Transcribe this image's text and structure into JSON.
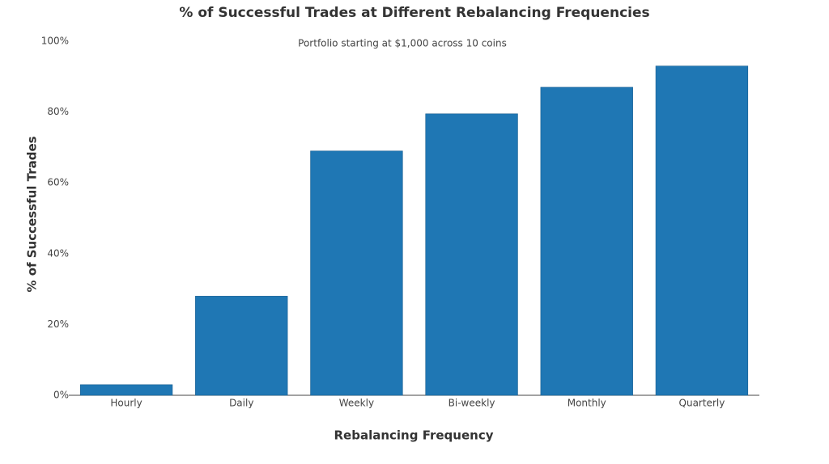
{
  "chart_data": {
    "type": "bar",
    "title": "% of Successful Trades at Different Rebalancing Frequencies",
    "subtitle": "Portfolio starting at $1,000 across 10 coins",
    "x_label": "Rebalancing Frequency",
    "y_label": "% of Successful Trades",
    "categories": [
      "Hourly",
      "Daily",
      "Weekly",
      "Bi-weekly",
      "Monthly",
      "Quarterly"
    ],
    "values": [
      3,
      28,
      69,
      79.5,
      87,
      93
    ],
    "color": "#1f77b4",
    "ylim": [
      0,
      100
    ],
    "yticks": [
      {
        "value": 0,
        "label": "0%"
      },
      {
        "value": 20,
        "label": "20%"
      },
      {
        "value": 40,
        "label": "40%"
      },
      {
        "value": 60,
        "label": "60%"
      },
      {
        "value": 80,
        "label": "80%"
      },
      {
        "value": 100,
        "label": "100%"
      }
    ],
    "grid": false
  }
}
